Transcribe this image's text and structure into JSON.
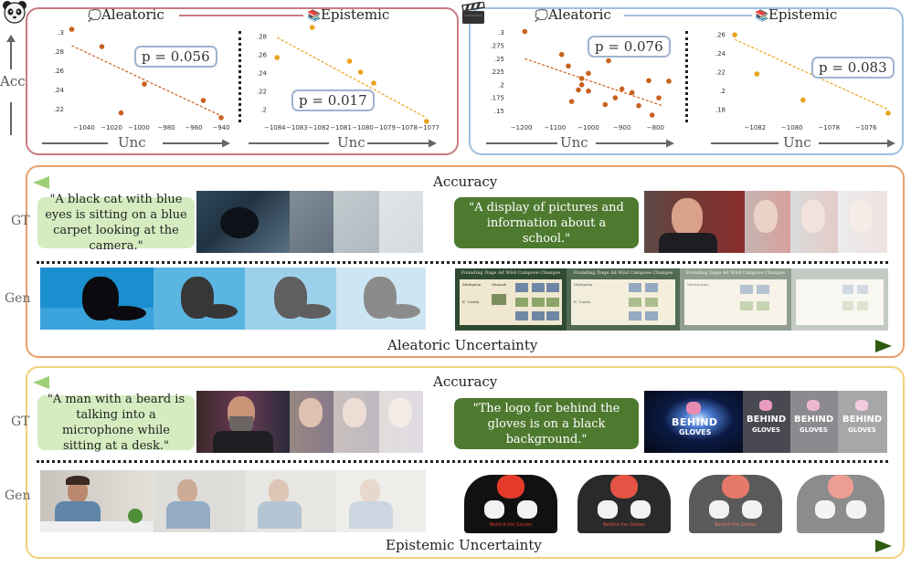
{
  "icons": {
    "panda": "panda-icon",
    "clapper": "clapperboard-icon",
    "thought": "thought-bubble-icon",
    "books": "books-icon"
  },
  "colors": {
    "panel1_border": "#c97a82",
    "panel2_border": "#9fbfe0",
    "band_top_border": "#e9a06a",
    "band_bottom_border": "#f0d27a",
    "aleatoric_dot": "#c8611f",
    "epistemic_dot": "#e9a31b",
    "green_light": "#9ed07a",
    "green_dark": "#2d5a0f",
    "caption_light_bg": "#d5ecc0",
    "caption_dark_bg": "#4e7a30"
  },
  "top": {
    "acc_label": "Acc",
    "unc_label": "Unc"
  },
  "chart_data": [
    {
      "type": "scatter",
      "group": "image",
      "title": "Aleatoric",
      "xlabel": "Unc",
      "ylabel": "Acc",
      "xticks": [
        -1040,
        -1020,
        -1000,
        -980,
        -960,
        -940
      ],
      "yticks": [
        0.22,
        0.24,
        0.26,
        0.28,
        0.3
      ],
      "xlim": [
        -1052,
        -936
      ],
      "ylim": [
        0.21,
        0.305
      ],
      "points": [
        [
          -1049,
          0.303
        ],
        [
          -1027,
          0.285
        ],
        [
          -1013,
          0.216
        ],
        [
          -996,
          0.246
        ],
        [
          -953,
          0.229
        ],
        [
          -940,
          0.211
        ]
      ],
      "trend": [
        [
          -1049,
          0.286
        ],
        [
          -940,
          0.213
        ]
      ],
      "annotation": "p = 0.056",
      "grid": false
    },
    {
      "type": "scatter",
      "group": "image",
      "title": "Epistemic",
      "xlabel": "Unc",
      "ylabel": "",
      "xticks": [
        -1084,
        -1083,
        -1082,
        -1081,
        -1080,
        -1079,
        -1078,
        -1077
      ],
      "yticks": [
        0.2,
        0.22,
        0.24,
        0.26,
        0.28
      ],
      "xlim": [
        -1084.2,
        -1076.8
      ],
      "ylim": [
        0.19,
        0.29
      ],
      "points": [
        [
          -1083.9,
          0.257
        ],
        [
          -1082.3,
          0.29
        ],
        [
          -1080.6,
          0.253
        ],
        [
          -1080.1,
          0.241
        ],
        [
          -1079.5,
          0.229
        ],
        [
          -1077.1,
          0.187
        ]
      ],
      "trend": [
        [
          -1083.9,
          0.279
        ],
        [
          -1077.1,
          0.191
        ]
      ],
      "annotation": "p = 0.017",
      "grid": false
    },
    {
      "type": "scatter",
      "group": "video",
      "title": "Aleatoric",
      "xlabel": "Unc",
      "ylabel": "",
      "xticks": [
        -1200,
        -1100,
        -1000,
        -900,
        -800
      ],
      "yticks": [
        0.15,
        0.175,
        0.2,
        0.225,
        0.25,
        0.275,
        0.3
      ],
      "xlim": [
        -1240,
        -760
      ],
      "ylim": [
        0.135,
        0.31
      ],
      "points": [
        [
          -1190,
          0.302
        ],
        [
          -1080,
          0.258
        ],
        [
          -1060,
          0.236
        ],
        [
          -1050,
          0.168
        ],
        [
          -1030,
          0.19
        ],
        [
          -1020,
          0.212
        ],
        [
          -1020,
          0.2
        ],
        [
          -1000,
          0.188
        ],
        [
          -1000,
          0.222
        ],
        [
          -950,
          0.162
        ],
        [
          -940,
          0.246
        ],
        [
          -920,
          0.175
        ],
        [
          -900,
          0.192
        ],
        [
          -870,
          0.185
        ],
        [
          -850,
          0.16
        ],
        [
          -820,
          0.208
        ],
        [
          -810,
          0.142
        ],
        [
          -790,
          0.175
        ],
        [
          -760,
          0.207
        ]
      ],
      "trend": [
        [
          -1190,
          0.25
        ],
        [
          -780,
          0.16
        ]
      ],
      "annotation": "p = 0.076",
      "grid": false
    },
    {
      "type": "scatter",
      "group": "video",
      "title": "Epistemic",
      "xlabel": "Unc",
      "ylabel": "",
      "xticks": [
        -1082,
        -1080,
        -1078,
        -1076
      ],
      "yticks": [
        0.18,
        0.2,
        0.22,
        0.24,
        0.26
      ],
      "xlim": [
        -1083.4,
        -1074.6
      ],
      "ylim": [
        0.17,
        0.268
      ],
      "points": [
        [
          -1083.1,
          0.26
        ],
        [
          -1081.9,
          0.218
        ],
        [
          -1079.4,
          0.19
        ],
        [
          -1074.8,
          0.176
        ]
      ],
      "trend": [
        [
          -1083.1,
          0.255
        ],
        [
          -1074.8,
          0.18
        ]
      ],
      "annotation": "p = 0.083",
      "grid": false
    }
  ],
  "band_aleatoric": {
    "accuracy_label": "Accuracy",
    "uncertainty_label": "Aleatoric Uncertainty",
    "gt_label": "GT",
    "gen_label": "Gen",
    "caption_left": "\"A black cat with blue eyes is sitting on a blue carpet looking at the camera.\"",
    "caption_right": "\"A display of pictures and information about a school.\""
  },
  "band_epistemic": {
    "accuracy_label": "Accuracy",
    "uncertainty_label": "Epistemic Uncertainty",
    "gt_label": "GT",
    "gen_label": "Gen",
    "caption_left": "\"A man with a beard is talking into a microphone while sitting at a desk.\"",
    "caption_right": "\"The logo for behind the gloves is on a black background.\""
  },
  "school_thumb": {
    "heading": "Founding Dage Ad Wild Campose Changes",
    "col1": "Midopiem",
    "col2": "Munark",
    "col3": "E. Castia",
    "col4": "Mistrantian"
  },
  "gloves_thumb": {
    "logo_line1": "BEHIND",
    "logo_line2": "GLOVES",
    "shirt_text": "Behind the Gloves"
  }
}
